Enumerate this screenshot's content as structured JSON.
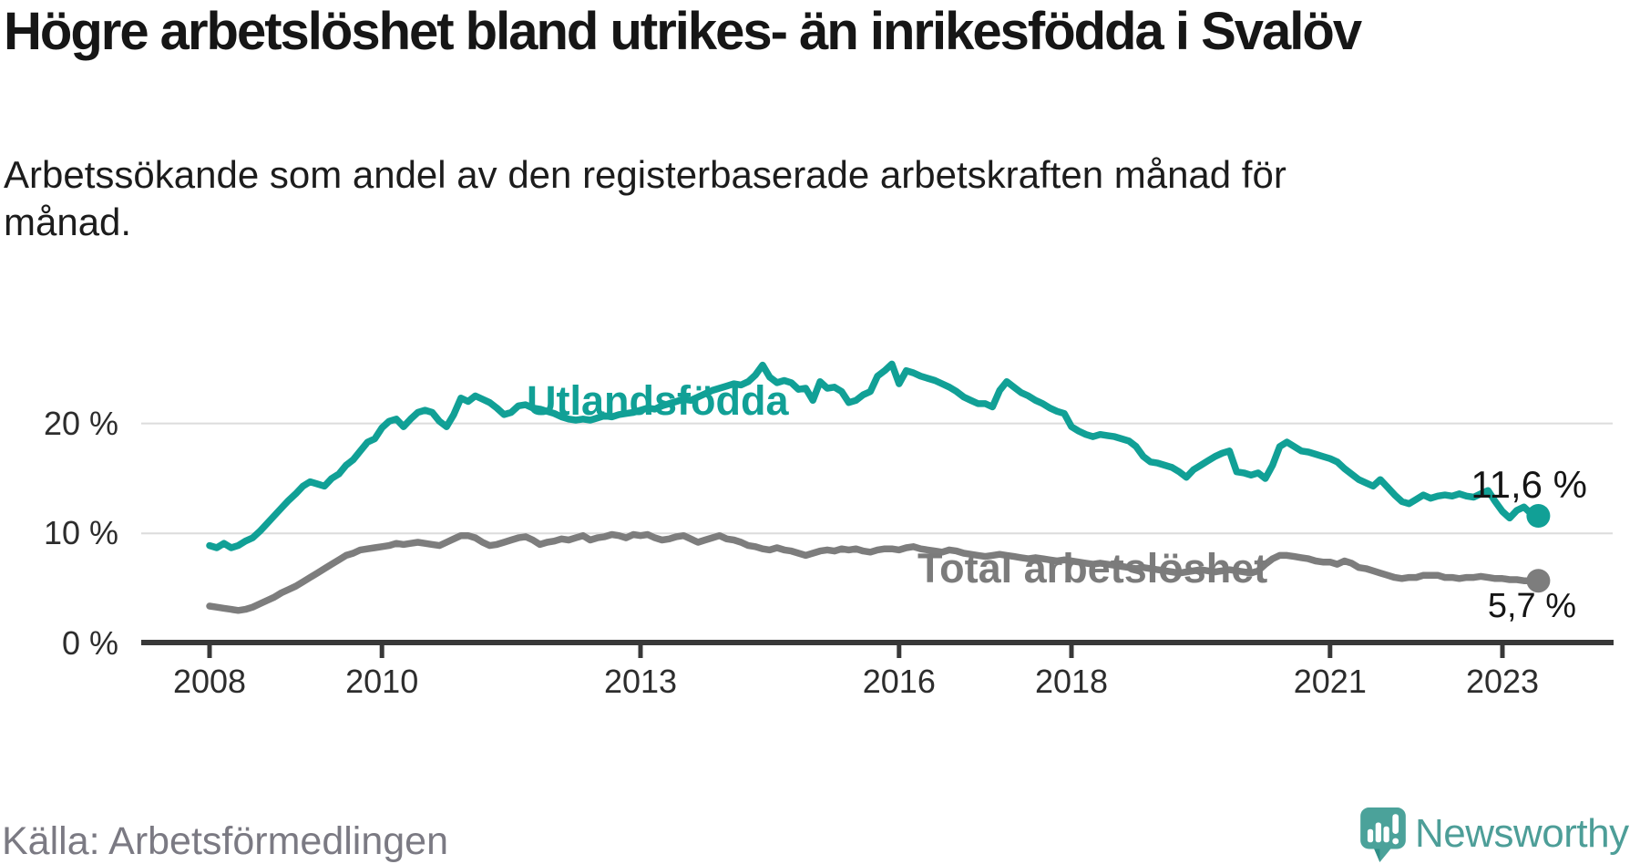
{
  "header": {
    "title": "Högre arbetslöshet bland utrikes- än inrikesfödda i Svalöv",
    "subtitle": "Arbetssökande som andel av den registerbaserade arbetskraften månad för månad."
  },
  "chart_data": {
    "type": "line",
    "title": "Högre arbetslöshet bland utrikes- än inrikesfödda i Svalöv",
    "unit": "%",
    "frequency": "monthly",
    "x_start": "2008-01",
    "x_end": "2023-06",
    "grid": "horizontal",
    "ylim": [
      0,
      26
    ],
    "y_axis": {
      "ticks": [
        {
          "value": 0,
          "label": "0 %"
        },
        {
          "value": 10,
          "label": "10 %"
        },
        {
          "value": 20,
          "label": "20 %"
        }
      ]
    },
    "x_axis": {
      "ticks": [
        {
          "year": 2008,
          "label": "2008"
        },
        {
          "year": 2010,
          "label": "2010"
        },
        {
          "year": 2013,
          "label": "2013"
        },
        {
          "year": 2016,
          "label": "2016"
        },
        {
          "year": 2018,
          "label": "2018"
        },
        {
          "year": 2021,
          "label": "2021"
        },
        {
          "year": 2023,
          "label": "2023"
        }
      ]
    },
    "series": [
      {
        "name": "Utlandsfödda",
        "color": "#11a096",
        "end_label": "11,6 %",
        "end_value": 11.6,
        "values": [
          8.9,
          8.7,
          9.1,
          8.7,
          8.9,
          9.3,
          9.6,
          10.2,
          10.9,
          11.6,
          12.3,
          13.0,
          13.6,
          14.3,
          14.7,
          14.5,
          14.3,
          15.0,
          15.4,
          16.2,
          16.7,
          17.5,
          18.3,
          18.6,
          19.6,
          20.2,
          20.4,
          19.7,
          20.4,
          21.0,
          21.2,
          21.0,
          20.2,
          19.7,
          20.8,
          22.3,
          22.0,
          22.5,
          22.2,
          21.9,
          21.4,
          20.8,
          21.0,
          21.6,
          21.7,
          21.4,
          21.3,
          21.1,
          20.9,
          20.6,
          20.4,
          20.3,
          20.4,
          20.3,
          20.5,
          20.7,
          20.6,
          20.8,
          20.9,
          21.0,
          21.2,
          21.4,
          21.3,
          21.6,
          21.8,
          22.0,
          22.2,
          22.1,
          22.4,
          22.7,
          23.0,
          23.2,
          23.4,
          23.6,
          23.5,
          23.8,
          24.4,
          25.3,
          24.2,
          23.7,
          23.9,
          23.7,
          23.1,
          23.2,
          22.1,
          23.8,
          23.2,
          23.3,
          22.9,
          21.9,
          22.1,
          22.6,
          22.9,
          24.3,
          24.8,
          25.4,
          23.6,
          24.8,
          24.6,
          24.3,
          24.1,
          23.9,
          23.6,
          23.3,
          22.9,
          22.4,
          22.1,
          21.8,
          21.8,
          21.5,
          23.0,
          23.8,
          23.3,
          22.8,
          22.5,
          22.1,
          21.8,
          21.4,
          21.1,
          20.9,
          19.7,
          19.3,
          19.0,
          18.8,
          19.0,
          18.9,
          18.8,
          18.6,
          18.4,
          17.9,
          17.0,
          16.5,
          16.4,
          16.2,
          16.0,
          15.6,
          15.1,
          15.8,
          16.2,
          16.6,
          17.0,
          17.3,
          17.5,
          15.6,
          15.5,
          15.3,
          15.5,
          15.0,
          16.2,
          17.9,
          18.3,
          17.9,
          17.5,
          17.4,
          17.2,
          17.0,
          16.8,
          16.5,
          15.9,
          15.4,
          14.9,
          14.6,
          14.3,
          14.9,
          14.2,
          13.5,
          12.9,
          12.7,
          13.1,
          13.5,
          13.2,
          13.4,
          13.5,
          13.4,
          13.6,
          13.4,
          13.3,
          13.6,
          13.9,
          12.9,
          12.0,
          11.4,
          12.1,
          12.4,
          11.8,
          11.6
        ]
      },
      {
        "name": "Total arbetslöshet",
        "color": "#7d7d7d",
        "end_label": "5,7 %",
        "end_value": 5.7,
        "values": [
          3.4,
          3.3,
          3.2,
          3.1,
          3.0,
          3.1,
          3.3,
          3.6,
          3.9,
          4.2,
          4.6,
          4.9,
          5.2,
          5.6,
          6.0,
          6.4,
          6.8,
          7.2,
          7.6,
          8.0,
          8.2,
          8.5,
          8.6,
          8.7,
          8.8,
          8.9,
          9.1,
          9.0,
          9.1,
          9.2,
          9.1,
          9.0,
          8.9,
          9.2,
          9.5,
          9.8,
          9.8,
          9.6,
          9.2,
          8.9,
          9.0,
          9.2,
          9.4,
          9.6,
          9.7,
          9.4,
          9.0,
          9.2,
          9.3,
          9.5,
          9.4,
          9.6,
          9.8,
          9.4,
          9.6,
          9.7,
          9.9,
          9.8,
          9.6,
          9.9,
          9.8,
          9.9,
          9.6,
          9.4,
          9.5,
          9.7,
          9.8,
          9.5,
          9.2,
          9.4,
          9.6,
          9.8,
          9.5,
          9.4,
          9.2,
          8.9,
          8.8,
          8.6,
          8.5,
          8.7,
          8.5,
          8.4,
          8.2,
          8.0,
          8.2,
          8.4,
          8.5,
          8.4,
          8.6,
          8.5,
          8.6,
          8.4,
          8.3,
          8.5,
          8.6,
          8.6,
          8.5,
          8.7,
          8.8,
          8.6,
          8.5,
          8.4,
          8.3,
          8.5,
          8.4,
          8.2,
          8.1,
          8.0,
          7.9,
          8.0,
          8.1,
          8.0,
          7.9,
          7.8,
          7.7,
          7.8,
          7.7,
          7.6,
          7.5,
          7.6,
          7.5,
          7.4,
          7.3,
          7.2,
          7.3,
          7.2,
          7.1,
          7.0,
          6.9,
          6.8,
          6.9,
          6.8,
          6.7,
          6.6,
          6.5,
          6.4,
          6.5,
          6.6,
          6.7,
          6.6,
          6.5,
          6.6,
          6.7,
          6.6,
          6.5,
          6.4,
          6.6,
          7.2,
          7.7,
          8.0,
          8.0,
          7.9,
          7.8,
          7.7,
          7.5,
          7.4,
          7.4,
          7.2,
          7.5,
          7.3,
          6.9,
          6.8,
          6.6,
          6.4,
          6.2,
          6.0,
          5.9,
          6.0,
          6.0,
          6.2,
          6.2,
          6.2,
          6.0,
          6.0,
          5.9,
          6.0,
          6.0,
          6.1,
          6.0,
          5.9,
          5.9,
          5.8,
          5.8,
          5.7,
          5.7,
          5.7
        ]
      }
    ],
    "colors": {
      "axis": "#383838",
      "gridline": "#dcdcdc",
      "tick_text": "#2d2d2d"
    }
  },
  "footer": {
    "source": "Källa: Arbetsförmedlingen",
    "brand": "Newsworthy",
    "brand_color": "#4d9e98",
    "brand_icon_color": "#4ba29a"
  }
}
